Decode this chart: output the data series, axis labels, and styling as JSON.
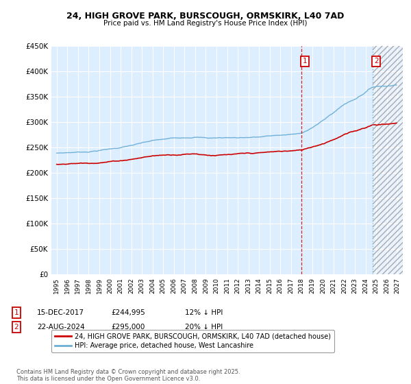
{
  "title_line1": "24, HIGH GROVE PARK, BURSCOUGH, ORMSKIRK, L40 7AD",
  "title_line2": "Price paid vs. HM Land Registry's House Price Index (HPI)",
  "ylabel_ticks": [
    "£0",
    "£50K",
    "£100K",
    "£150K",
    "£200K",
    "£250K",
    "£300K",
    "£350K",
    "£400K",
    "£450K"
  ],
  "ytick_values": [
    0,
    50000,
    100000,
    150000,
    200000,
    250000,
    300000,
    350000,
    400000,
    450000
  ],
  "xmin": 1994.5,
  "xmax": 2027.5,
  "ymin": 0,
  "ymax": 450000,
  "marker1_x": 2017.96,
  "marker2_x": 2024.64,
  "hatch_start": 2024.64,
  "red_line_color": "#cc0000",
  "blue_line_color": "#6baed6",
  "bg_color": "#ddeeff",
  "grid_color": "#ffffff",
  "legend_label1": "24, HIGH GROVE PARK, BURSCOUGH, ORMSKIRK, L40 7AD (detached house)",
  "legend_label2": "HPI: Average price, detached house, West Lancashire",
  "annotation1_date": "15-DEC-2017",
  "annotation1_price": "£244,995",
  "annotation1_pct": "12% ↓ HPI",
  "annotation2_date": "22-AUG-2024",
  "annotation2_price": "£295,000",
  "annotation2_pct": "20% ↓ HPI",
  "footnote": "Contains HM Land Registry data © Crown copyright and database right 2025.\nThis data is licensed under the Open Government Licence v3.0."
}
